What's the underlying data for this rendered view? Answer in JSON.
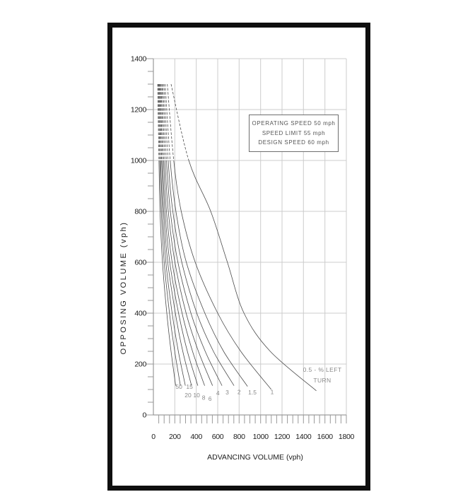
{
  "page": {
    "background": "#ffffff",
    "frame_color": "#0f0f0f"
  },
  "chart_data": {
    "type": "line",
    "xlabel": "ADVANCING VOLUME (vph)",
    "ylabel": "OPPOSING VOLUME (vph)",
    "xlim": [
      0,
      1800
    ],
    "ylim": [
      0,
      1400
    ],
    "x_ticks": [
      0,
      200,
      400,
      600,
      800,
      1000,
      1200,
      1400,
      1600,
      1800
    ],
    "y_ticks": [
      0,
      200,
      400,
      600,
      800,
      1000,
      1200,
      1400
    ],
    "minor_tick_interval": 50,
    "grid": true,
    "grid_color": "#cccccc",
    "axis_color": "#868686",
    "tick_color": "#9a9a9a",
    "tick_label_color": "#1c1c1c",
    "curve_color": "#4b4b4b",
    "curve_label_color": "#8a8a8a",
    "dashed_above_opposing": 1000,
    "annotation_box": {
      "lines": [
        "OPERATING SPEED 50 mph",
        "SPEED LIMIT 55 mph",
        "DESIGN SPEED 60 mph"
      ]
    },
    "curve_family_note": {
      "line1": "0.5 - % LEFT",
      "line2": "TURN"
    },
    "series": [
      {
        "name": "left-turn-50pct",
        "label": "50",
        "label_x": 238,
        "label_y": 103,
        "points": [
          [
            40,
            1300
          ],
          [
            52,
            1000
          ],
          [
            62,
            800
          ],
          [
            85,
            600
          ],
          [
            125,
            400
          ],
          [
            165,
            250
          ],
          [
            208,
            115
          ]
        ]
      },
      {
        "name": "left-turn-20pct",
        "label": "20",
        "label_x": 323,
        "label_y": 70,
        "points": [
          [
            46,
            1300
          ],
          [
            60,
            1000
          ],
          [
            74,
            800
          ],
          [
            101,
            600
          ],
          [
            150,
            400
          ],
          [
            199,
            250
          ],
          [
            252,
            115
          ]
        ]
      },
      {
        "name": "left-turn-15pct",
        "label": "15",
        "label_x": 337,
        "label_y": 103,
        "points": [
          [
            52,
            1300
          ],
          [
            68,
            1000
          ],
          [
            85,
            800
          ],
          [
            117,
            600
          ],
          [
            175,
            400
          ],
          [
            233,
            250
          ],
          [
            298,
            115
          ]
        ]
      },
      {
        "name": "left-turn-10pct",
        "label": "10",
        "label_x": 403,
        "label_y": 70,
        "points": [
          [
            58,
            1300
          ],
          [
            77,
            1000
          ],
          [
            96,
            800
          ],
          [
            134,
            600
          ],
          [
            205,
            400
          ],
          [
            274,
            250
          ],
          [
            356,
            115
          ]
        ]
      },
      {
        "name": "left-turn-8pct",
        "label": "8",
        "label_x": 469,
        "label_y": 60,
        "points": [
          [
            64,
            1300
          ],
          [
            86,
            1000
          ],
          [
            108,
            800
          ],
          [
            153,
            600
          ],
          [
            235,
            400
          ],
          [
            317,
            250
          ],
          [
            415,
            115
          ]
        ]
      },
      {
        "name": "left-turn-6pct",
        "label": "6",
        "label_x": 528,
        "label_y": 55,
        "points": [
          [
            71,
            1300
          ],
          [
            96,
            1000
          ],
          [
            122,
            800
          ],
          [
            175,
            600
          ],
          [
            268,
            400
          ],
          [
            365,
            250
          ],
          [
            478,
            115
          ]
        ]
      },
      {
        "name": "left-turn-4pct",
        "label": "4",
        "label_x": 601,
        "label_y": 78,
        "points": [
          [
            79,
            1300
          ],
          [
            108,
            1000
          ],
          [
            139,
            800
          ],
          [
            201,
            600
          ],
          [
            305,
            400
          ],
          [
            420,
            250
          ],
          [
            552,
            115
          ]
        ]
      },
      {
        "name": "left-turn-3pct",
        "label": "3",
        "label_x": 689,
        "label_y": 81,
        "points": [
          [
            88,
            1300
          ],
          [
            122,
            1000
          ],
          [
            158,
            800
          ],
          [
            229,
            600
          ],
          [
            350,
            400
          ],
          [
            483,
            250
          ],
          [
            640,
            115
          ]
        ]
      },
      {
        "name": "left-turn-2pct",
        "label": "2",
        "label_x": 799,
        "label_y": 82,
        "points": [
          [
            98,
            1300
          ],
          [
            138,
            1000
          ],
          [
            181,
            800
          ],
          [
            265,
            600
          ],
          [
            405,
            400
          ],
          [
            560,
            250
          ],
          [
            752,
            115
          ]
        ]
      },
      {
        "name": "left-turn-1.5pct",
        "label": "1.5",
        "label_x": 924,
        "label_y": 81,
        "points": [
          [
            110,
            1300
          ],
          [
            157,
            1000
          ],
          [
            210,
            800
          ],
          [
            307,
            600
          ],
          [
            480,
            400
          ],
          [
            655,
            250
          ],
          [
            878,
            112
          ]
        ]
      },
      {
        "name": "left-turn-1pct",
        "label": "1",
        "label_x": 1108,
        "label_y": 82,
        "points": [
          [
            130,
            1300
          ],
          [
            190,
            1000
          ],
          [
            260,
            800
          ],
          [
            390,
            600
          ],
          [
            600,
            400
          ],
          [
            815,
            250
          ],
          [
            1100,
            100
          ]
        ]
      },
      {
        "name": "left-turn-0.5pct",
        "label": "0.5",
        "label_x": null,
        "label_y": null,
        "points": [
          [
            165,
            1300
          ],
          [
            330,
            1000
          ],
          [
            535,
            800
          ],
          [
            690,
            600
          ],
          [
            845,
            400
          ],
          [
            1090,
            250
          ],
          [
            1520,
            95
          ]
        ]
      }
    ]
  }
}
